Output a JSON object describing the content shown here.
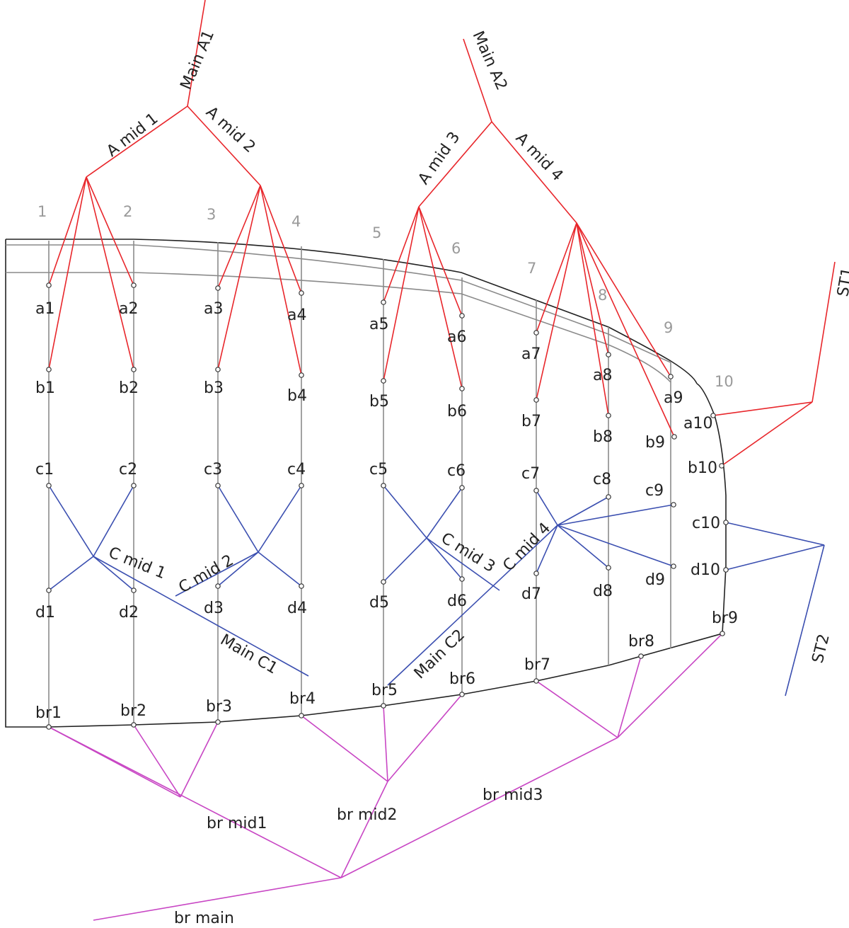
{
  "colors": {
    "group_a": "#e8262b",
    "group_c": "#3b4fb0",
    "group_br": "#c846c4",
    "outline": "#222222",
    "inner_line": "#8a8a8a",
    "number": "#9a9a9a"
  },
  "station_numbers": [
    "1",
    "2",
    "3",
    "4",
    "5",
    "6",
    "7",
    "8",
    "9",
    "10"
  ],
  "node_labels": {
    "a": [
      "a1",
      "a2",
      "a3",
      "a4",
      "a5",
      "a6",
      "a7",
      "a8",
      "a9",
      "a10"
    ],
    "b": [
      "b1",
      "b2",
      "b3",
      "b4",
      "b5",
      "b6",
      "b7",
      "b8",
      "b9",
      "b10"
    ],
    "c": [
      "c1",
      "c2",
      "c3",
      "c4",
      "c5",
      "c6",
      "c7",
      "c8",
      "c9",
      "c10"
    ],
    "d": [
      "d1",
      "d2",
      "d3",
      "d4",
      "d5",
      "d6",
      "d7",
      "d8",
      "d9",
      "d10"
    ],
    "br": [
      "br1",
      "br2",
      "br3",
      "br4",
      "br5",
      "br6",
      "br7",
      "br8",
      "br9"
    ]
  },
  "line_labels": {
    "main_a1": "Main A1",
    "main_a2": "Main A2",
    "a_mid_1": "A mid 1",
    "a_mid_2": "A mid 2",
    "a_mid_3": "A mid 3",
    "a_mid_4": "A mid 4",
    "st1": "ST1",
    "st2": "ST2",
    "c_mid_1": "C mid 1",
    "c_mid_2": "C mid 2",
    "c_mid_3": "C mid 3",
    "c_mid_4": "C mid 4",
    "main_c1": "Main C1",
    "main_c2": "Main C2",
    "br_mid1": "br mid1",
    "br_mid2": "br mid2",
    "br_mid3": "br mid3",
    "br_main": "br main"
  }
}
